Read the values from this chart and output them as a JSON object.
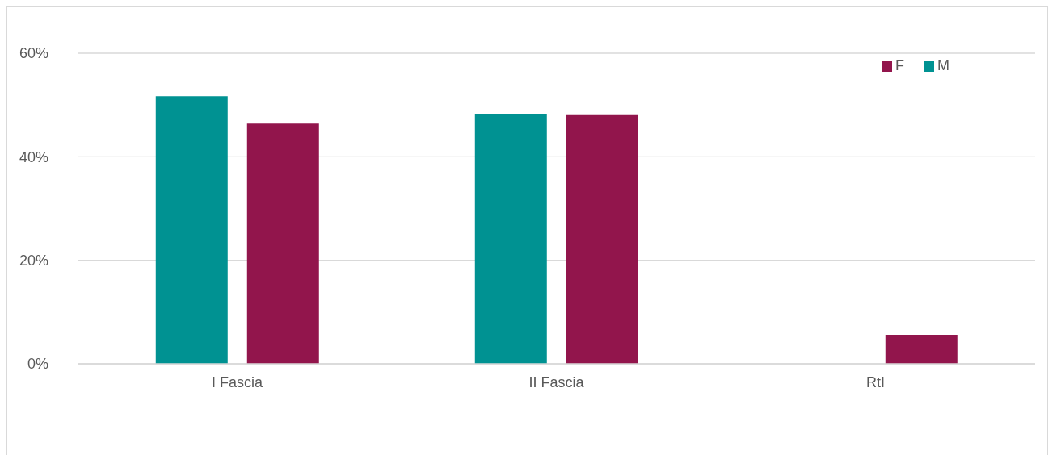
{
  "chart_data": {
    "type": "bar",
    "categories": [
      "I Fascia",
      "II Fascia",
      "RtI"
    ],
    "series": [
      {
        "name": "M",
        "color": "#009292",
        "values": [
          51.7,
          48.3,
          0
        ]
      },
      {
        "name": "F",
        "color": "#92154c",
        "values": [
          46.4,
          48.2,
          5.6
        ]
      }
    ],
    "ylim": [
      0,
      60
    ],
    "yticks": [
      {
        "value": 0,
        "label": "0%"
      },
      {
        "value": 20,
        "label": "20%"
      },
      {
        "value": 40,
        "label": "40%"
      },
      {
        "value": 60,
        "label": "60%"
      }
    ],
    "grid": "y",
    "legend": "top right"
  }
}
